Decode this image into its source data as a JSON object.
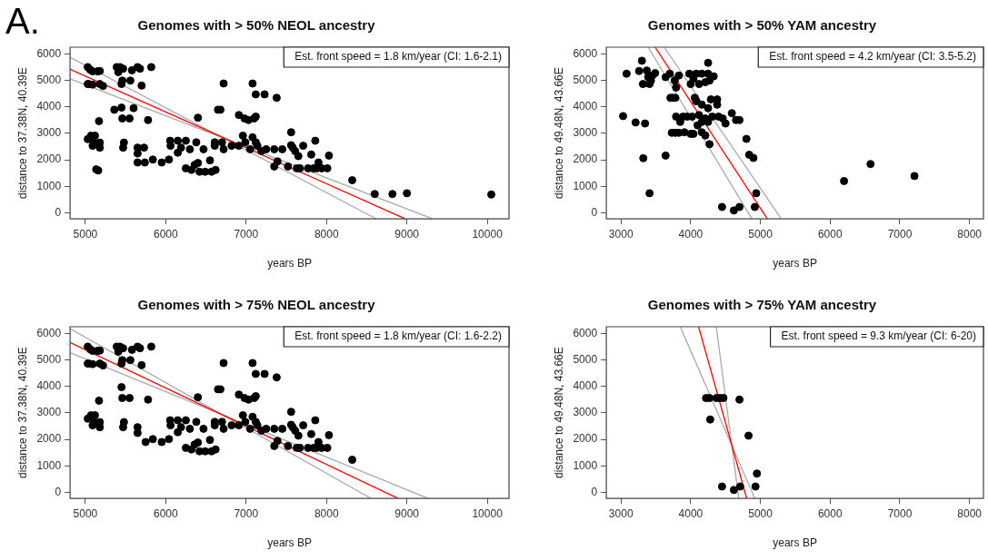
{
  "chart_data": [
    {
      "type": "scatter",
      "title": "Genomes with > 50% NEOL ancestry",
      "xlabel": "years BP",
      "ylabel": "distance to 37.38N, 40.39E",
      "xlim": [
        4810,
        10270
      ],
      "ylim": [
        -230,
        6250
      ],
      "xticks": [
        5000,
        6000,
        7000,
        8000,
        9000,
        10000
      ],
      "yticks": [
        0,
        1000,
        2000,
        3000,
        4000,
        5000,
        6000
      ],
      "annotations": [
        "Est. front speed = 1.8 km/year (CI: 1.6-2.1)",
        "A."
      ],
      "series": [
        {
          "color": "#000000",
          "marker": "circle",
          "x": [
            5030,
            5060,
            5090,
            5150,
            5180,
            5040,
            5030,
            5090,
            5180,
            5220,
            5030,
            5070,
            5110,
            5090,
            5120,
            5180,
            5180,
            5135,
            5160,
            5170,
            5390,
            5430,
            5470,
            5410,
            5360,
            5450,
            5450,
            5460,
            5460,
            5550,
            5480,
            5470,
            5560,
            5580,
            5650,
            5680,
            5600,
            5700,
            5650,
            5650,
            5650,
            5730,
            5740,
            5780,
            5820,
            5840,
            5950,
            6040,
            6055,
            6060,
            6150,
            6150,
            6190,
            6250,
            6250,
            6300,
            6320,
            6360,
            6380,
            6400,
            6400,
            6420,
            6470,
            6490,
            6550,
            6570,
            6610,
            6620,
            6650,
            6680,
            6700,
            6720,
            6720,
            6610,
            6820,
            6910,
            6910,
            6960,
            6980,
            6990,
            7030,
            7050,
            7080,
            7080,
            7100,
            7120,
            7120,
            7120,
            7230,
            7140,
            7190,
            7250,
            7350,
            7350,
            7380,
            7390,
            7450,
            7520,
            7560,
            7560,
            7580,
            7610,
            7630,
            7650,
            7670,
            7710,
            7770,
            7810,
            7840,
            7860,
            7880,
            7900,
            7940,
            8010,
            8030,
            8320,
            8600,
            8820,
            9000,
            10050
          ],
          "values": [
            5500,
            5400,
            5340,
            5340,
            5350,
            4860,
            4860,
            4840,
            4860,
            4790,
            2780,
            2910,
            2650,
            2530,
            2910,
            2650,
            2460,
            1640,
            1600,
            3460,
            5500,
            5500,
            5440,
            5310,
            3890,
            3970,
            4860,
            4990,
            3560,
            3560,
            2650,
            2460,
            4990,
            5380,
            5500,
            5440,
            3950,
            4800,
            2460,
            2240,
            1900,
            2460,
            1900,
            3500,
            5500,
            2010,
            1900,
            2010,
            2720,
            2530,
            2720,
            2270,
            2460,
            2720,
            1680,
            2400,
            1620,
            1810,
            2660,
            3590,
            1880,
            1550,
            2400,
            1550,
            1980,
            1550,
            2530,
            1620,
            3890,
            3890,
            2660,
            4880,
            2400,
            2660,
            2530,
            2530,
            3690,
            2910,
            3560,
            2660,
            3500,
            2400,
            4880,
            2850,
            3560,
            2660,
            3630,
            4470,
            4470,
            2530,
            2330,
            2400,
            2400,
            1750,
            4340,
            1940,
            2400,
            1750,
            3040,
            2550,
            2460,
            2330,
            1680,
            2140,
            1680,
            2530,
            1680,
            2200,
            1680,
            2720,
            1680,
            1900,
            1680,
            1680,
            2160,
            1230,
            710,
            710,
            740,
            690
          ]
        },
        {
          "type": "line",
          "color": "#ff0000",
          "x": [
            4810,
            8980
          ],
          "values": [
            5420,
            -230
          ]
        },
        {
          "type": "line",
          "color": "#aaaaaa",
          "x": [
            4810,
            8620
          ],
          "values": [
            5870,
            -230
          ]
        },
        {
          "type": "line",
          "color": "#aaaaaa",
          "x": [
            4810,
            9320
          ],
          "values": [
            5060,
            -230
          ]
        }
      ]
    },
    {
      "type": "scatter",
      "title": "Genomes with > 50% YAM ancestry",
      "xlabel": "years BP",
      "ylabel": "distance to 49.48N, 43.66E",
      "xlim": [
        2790,
        8200
      ],
      "ylim": [
        -230,
        6250
      ],
      "xticks": [
        3000,
        4000,
        5000,
        6000,
        7000,
        8000
      ],
      "yticks": [
        0,
        1000,
        2000,
        3000,
        4000,
        5000,
        6000
      ],
      "annotations": [
        "Est. front speed = 4.2 km/year (CI: 3.5-5.2)"
      ],
      "series": [
        {
          "color": "#000000",
          "marker": "circle",
          "x": [
            3030,
            3080,
            3210,
            3300,
            3260,
            3315,
            3320,
            3345,
            3370,
            3410,
            3410,
            3390,
            3450,
            3490,
            3430,
            3640,
            3640,
            3700,
            3710,
            3740,
            3780,
            3730,
            3780,
            3830,
            3770,
            3790,
            3830,
            3790,
            3850,
            3890,
            3910,
            3950,
            3980,
            4000,
            4040,
            4020,
            4000,
            4040,
            4080,
            4120,
            4160,
            4210,
            4250,
            4270,
            4250,
            4330,
            4060,
            4080,
            4160,
            4120,
            4160,
            4210,
            4250,
            4100,
            4160,
            4210,
            4270,
            4250,
            4290,
            4380,
            4380,
            4310,
            4400,
            4460,
            4500,
            4590,
            4650,
            4700,
            4800,
            4840,
            4900,
            4940,
            4920,
            4450,
            4620,
            4700,
            6200,
            6580,
            7210
          ],
          "values": [
            3650,
            5250,
            3410,
            5740,
            5350,
            4860,
            2060,
            3370,
            5370,
            740,
            4860,
            5120,
            5180,
            5270,
            4990,
            2160,
            5120,
            5250,
            4340,
            4340,
            4340,
            3020,
            3020,
            3020,
            4990,
            4730,
            5180,
            3630,
            3430,
            3630,
            3040,
            3630,
            5250,
            4860,
            5050,
            3630,
            2980,
            2980,
            5250,
            4860,
            5250,
            4930,
            5250,
            4990,
            5660,
            5150,
            4340,
            4210,
            4080,
            3690,
            3430,
            3560,
            3430,
            3300,
            3040,
            2920,
            2590,
            3950,
            4280,
            4280,
            4080,
            3630,
            3630,
            3560,
            3370,
            3760,
            3500,
            3500,
            2790,
            2190,
            2070,
            740,
            220,
            220,
            90,
            220,
            1200,
            1840,
            1390
          ]
        },
        {
          "type": "line",
          "color": "#ff0000",
          "x": [
            3490,
            5100
          ],
          "values": [
            6250,
            -230
          ]
        },
        {
          "type": "line",
          "color": "#aaaaaa",
          "x": [
            3390,
            4880
          ],
          "values": [
            6250,
            -230
          ]
        },
        {
          "type": "line",
          "color": "#aaaaaa",
          "x": [
            3620,
            5300
          ],
          "values": [
            6250,
            -230
          ]
        }
      ]
    },
    {
      "type": "scatter",
      "title": "Genomes with > 75% NEOL ancestry",
      "xlabel": "years BP",
      "ylabel": "distance to 37.38N, 40.39E",
      "xlim": [
        4810,
        10270
      ],
      "ylim": [
        -230,
        6250
      ],
      "xticks": [
        5000,
        6000,
        7000,
        8000,
        9000,
        10000
      ],
      "yticks": [
        0,
        1000,
        2000,
        3000,
        4000,
        5000,
        6000
      ],
      "annotations": [
        "Est. front speed = 1.8 km/year (CI: 1.6-2.2)"
      ],
      "series": [
        {
          "color": "#000000",
          "marker": "circle",
          "x": [
            5030,
            5060,
            5090,
            5150,
            5180,
            5040,
            5030,
            5090,
            5180,
            5220,
            5030,
            5070,
            5110,
            5090,
            5120,
            5180,
            5180,
            5170,
            5390,
            5430,
            5470,
            5410,
            5450,
            5450,
            5460,
            5460,
            5550,
            5480,
            5470,
            5560,
            5580,
            5650,
            5680,
            5700,
            5650,
            5650,
            5750,
            5780,
            5820,
            5840,
            5950,
            6040,
            6055,
            6060,
            6150,
            6150,
            6190,
            6250,
            6250,
            6300,
            6320,
            6360,
            6380,
            6400,
            6400,
            6420,
            6470,
            6490,
            6550,
            6570,
            6610,
            6620,
            6650,
            6680,
            6700,
            6720,
            6720,
            6610,
            6820,
            6910,
            6910,
            6960,
            6980,
            6990,
            7030,
            7050,
            7080,
            7080,
            7100,
            7120,
            7120,
            7120,
            7230,
            7140,
            7190,
            7250,
            7350,
            7350,
            7380,
            7390,
            7450,
            7520,
            7560,
            7560,
            7580,
            7610,
            7630,
            7650,
            7670,
            7710,
            7770,
            7810,
            7840,
            7860,
            7880,
            7900,
            7940,
            8010,
            8030,
            8320
          ],
          "values": [
            5500,
            5400,
            5340,
            5340,
            5350,
            4860,
            4860,
            4840,
            4860,
            4790,
            2780,
            2910,
            2650,
            2530,
            2910,
            2650,
            2460,
            3460,
            5500,
            5500,
            5440,
            5310,
            3970,
            4860,
            4990,
            3560,
            3560,
            2650,
            2460,
            4990,
            5380,
            5500,
            5440,
            4800,
            2460,
            2240,
            1900,
            3500,
            5500,
            2010,
            1900,
            2010,
            2720,
            2530,
            2720,
            2270,
            2460,
            2720,
            1680,
            2400,
            1620,
            1810,
            2660,
            3590,
            1880,
            1550,
            2400,
            1550,
            1980,
            1550,
            2530,
            1620,
            3890,
            3890,
            2660,
            4880,
            2400,
            2660,
            2530,
            2530,
            3690,
            2910,
            3560,
            2660,
            3500,
            2400,
            4880,
            2850,
            3560,
            2660,
            3630,
            4470,
            4470,
            2530,
            2330,
            2400,
            2400,
            1750,
            4340,
            1940,
            2400,
            1750,
            3040,
            2550,
            2460,
            2330,
            1680,
            2140,
            1680,
            2530,
            1680,
            2200,
            1680,
            2720,
            1680,
            1900,
            1680,
            1680,
            2160,
            1230
          ]
        },
        {
          "type": "line",
          "color": "#ff0000",
          "x": [
            4810,
            8890
          ],
          "values": [
            5660,
            -230
          ]
        },
        {
          "type": "line",
          "color": "#aaaaaa",
          "x": [
            4810,
            8555
          ],
          "values": [
            6180,
            -230
          ]
        },
        {
          "type": "line",
          "color": "#aaaaaa",
          "x": [
            4810,
            9265
          ],
          "values": [
            5270,
            -230
          ]
        }
      ]
    },
    {
      "type": "scatter",
      "title": "Genomes with > 75% YAM ancestry",
      "xlabel": "years BP",
      "ylabel": "distance to 49.48N, 43.66E",
      "xlim": [
        2790,
        8200
      ],
      "ylim": [
        -230,
        6250
      ],
      "xticks": [
        3000,
        4000,
        5000,
        6000,
        7000,
        8000
      ],
      "yticks": [
        0,
        1000,
        2000,
        3000,
        4000,
        5000,
        6000
      ],
      "annotations": [
        "Est. front speed = 9.3 km/year (CI: 6-20)"
      ],
      "series": [
        {
          "color": "#000000",
          "marker": "circle",
          "x": [
            4220,
            4270,
            4370,
            4420,
            4470,
            4700,
            4280,
            4830,
            4950,
            4450,
            4620,
            4710,
            4930
          ],
          "values": [
            3560,
            3560,
            3560,
            3560,
            3560,
            3500,
            2750,
            2140,
            710,
            220,
            90,
            220,
            220
          ]
        },
        {
          "type": "line",
          "color": "#ff0000",
          "x": [
            4114,
            4804
          ],
          "values": [
            6250,
            -230
          ]
        },
        {
          "type": "line",
          "color": "#aaaaaa",
          "x": [
            3850,
            4920
          ],
          "values": [
            6250,
            -230
          ]
        },
        {
          "type": "line",
          "color": "#aaaaaa",
          "x": [
            4367,
            4690
          ],
          "values": [
            6250,
            -230
          ]
        }
      ]
    }
  ]
}
